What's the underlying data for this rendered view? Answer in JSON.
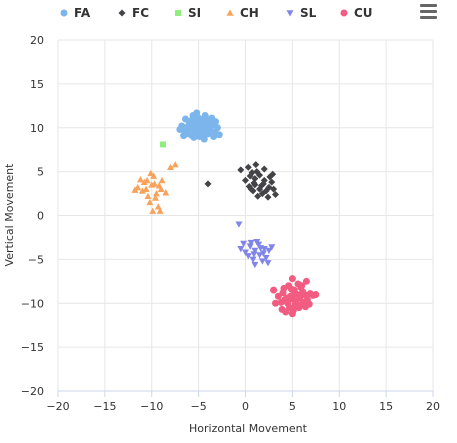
{
  "chart_data": {
    "type": "scatter",
    "xlabel": "Horizontal Movement",
    "ylabel": "Vertical Movement",
    "xlim": [
      -20,
      20
    ],
    "ylim": [
      -20,
      20
    ],
    "x_ticks": [
      -20,
      -15,
      -10,
      -5,
      0,
      5,
      10,
      15,
      20
    ],
    "y_ticks": [
      -20,
      -15,
      -10,
      -5,
      0,
      5,
      10,
      15,
      20
    ],
    "grid": true,
    "legend": "top",
    "series": [
      {
        "name": "FA",
        "color": "#7cb5ec",
        "marker": "circle",
        "points": [
          [
            -5.0,
            10.0
          ],
          [
            -4.8,
            10.6
          ],
          [
            -5.3,
            9.8
          ],
          [
            -4.5,
            10.2
          ],
          [
            -5.6,
            10.4
          ],
          [
            -4.2,
            9.6
          ],
          [
            -5.9,
            9.9
          ],
          [
            -4.0,
            10.9
          ],
          [
            -5.1,
            11.2
          ],
          [
            -4.6,
            9.2
          ],
          [
            -6.2,
            10.1
          ],
          [
            -3.8,
            9.8
          ],
          [
            -5.4,
            9.4
          ],
          [
            -4.3,
            11.4
          ],
          [
            -6.5,
            9.6
          ],
          [
            -3.5,
            10.3
          ],
          [
            -5.8,
            10.8
          ],
          [
            -4.9,
            9.0
          ],
          [
            -6.1,
            9.3
          ],
          [
            -3.3,
            9.5
          ],
          [
            -5.2,
            11.7
          ],
          [
            -4.1,
            10.5
          ],
          [
            -6.8,
            10.2
          ],
          [
            -3.0,
            10.0
          ],
          [
            -5.5,
            8.9
          ],
          [
            -4.4,
            8.7
          ],
          [
            -6.4,
            11.0
          ],
          [
            -3.6,
            11.1
          ],
          [
            -5.0,
            9.5
          ],
          [
            -4.7,
            10.0
          ],
          [
            -5.3,
            10.9
          ],
          [
            -4.0,
            9.3
          ],
          [
            -6.0,
            10.6
          ],
          [
            -3.9,
            10.7
          ],
          [
            -5.7,
            9.1
          ],
          [
            -2.8,
            9.2
          ],
          [
            -7.0,
            9.8
          ],
          [
            -4.5,
            11.0
          ],
          [
            -5.1,
            10.3
          ],
          [
            -3.4,
            9.0
          ],
          [
            -6.6,
            9.1
          ],
          [
            -4.8,
            9.7
          ],
          [
            -5.6,
            11.4
          ],
          [
            -4.2,
            10.1
          ],
          [
            -3.2,
            10.7
          ],
          [
            -6.3,
            9.8
          ],
          [
            -4.9,
            10.8
          ],
          [
            -5.4,
            10.0
          ]
        ]
      },
      {
        "name": "FC",
        "color": "#434348",
        "marker": "diamond",
        "points": [
          [
            0.5,
            4.5
          ],
          [
            1.0,
            3.5
          ],
          [
            1.5,
            3.0
          ],
          [
            2.0,
            4.0
          ],
          [
            0.8,
            2.8
          ],
          [
            1.2,
            5.0
          ],
          [
            2.5,
            3.2
          ],
          [
            0.3,
            5.5
          ],
          [
            -0.5,
            5.2
          ],
          [
            1.8,
            2.5
          ],
          [
            2.8,
            3.8
          ],
          [
            1.0,
            4.2
          ],
          [
            0.6,
            3.0
          ],
          [
            2.2,
            2.8
          ],
          [
            3.0,
            3.0
          ],
          [
            1.5,
            4.6
          ],
          [
            0.0,
            4.0
          ],
          [
            2.0,
            5.3
          ],
          [
            1.3,
            2.2
          ],
          [
            0.9,
            3.7
          ],
          [
            2.6,
            4.4
          ],
          [
            1.7,
            3.4
          ],
          [
            3.2,
            2.4
          ],
          [
            0.4,
            3.3
          ],
          [
            2.4,
            2.1
          ],
          [
            1.1,
            5.8
          ],
          [
            -4.0,
            3.6
          ],
          [
            1.9,
            3.6
          ],
          [
            0.7,
            4.9
          ],
          [
            2.9,
            4.7
          ]
        ]
      },
      {
        "name": "SI",
        "color": "#90ed7d",
        "marker": "square",
        "points": [
          [
            -8.8,
            8.1
          ]
        ]
      },
      {
        "name": "CH",
        "color": "#f7a35c",
        "marker": "triangle",
        "points": [
          [
            -10.0,
            3.5
          ],
          [
            -9.5,
            2.5
          ],
          [
            -10.5,
            4.0
          ],
          [
            -9.0,
            3.0
          ],
          [
            -11.0,
            2.8
          ],
          [
            -10.2,
            1.5
          ],
          [
            -9.8,
            4.5
          ],
          [
            -9.3,
            1.0
          ],
          [
            -8.0,
            5.5
          ],
          [
            -7.5,
            5.8
          ],
          [
            -9.9,
            0.5
          ],
          [
            -10.8,
            3.8
          ],
          [
            -11.5,
            3.2
          ],
          [
            -9.6,
            2.0
          ],
          [
            -8.9,
            4.0
          ],
          [
            -10.4,
            2.2
          ],
          [
            -9.1,
            0.5
          ],
          [
            -11.2,
            4.1
          ],
          [
            -9.7,
            3.6
          ],
          [
            -10.1,
            4.8
          ],
          [
            -8.5,
            2.6
          ],
          [
            -11.8,
            2.9
          ],
          [
            -10.6,
            3.0
          ],
          [
            -9.2,
            3.4
          ]
        ]
      },
      {
        "name": "SL",
        "color": "#8085e9",
        "marker": "triangle-down",
        "points": [
          [
            1.0,
            -4.0
          ],
          [
            0.5,
            -3.5
          ],
          [
            1.5,
            -4.5
          ],
          [
            2.0,
            -3.8
          ],
          [
            0.0,
            -4.2
          ],
          [
            1.2,
            -3.0
          ],
          [
            2.5,
            -4.0
          ],
          [
            0.8,
            -5.0
          ],
          [
            1.8,
            -5.2
          ],
          [
            -0.5,
            -3.8
          ],
          [
            2.2,
            -4.8
          ],
          [
            1.4,
            -3.3
          ],
          [
            0.3,
            -4.6
          ],
          [
            2.8,
            -3.6
          ],
          [
            -0.7,
            -1.0
          ],
          [
            1.0,
            -5.6
          ],
          [
            1.9,
            -4.3
          ],
          [
            0.6,
            -3.1
          ],
          [
            2.4,
            -5.4
          ],
          [
            -0.2,
            -3.2
          ],
          [
            1.6,
            -3.7
          ],
          [
            0.9,
            -4.4
          ]
        ]
      },
      {
        "name": "CU",
        "color": "#f15c80",
        "marker": "circle",
        "points": [
          [
            5.0,
            -9.5
          ],
          [
            5.5,
            -9.0
          ],
          [
            4.5,
            -10.0
          ],
          [
            6.0,
            -10.2
          ],
          [
            5.2,
            -8.5
          ],
          [
            4.8,
            -9.2
          ],
          [
            6.3,
            -9.0
          ],
          [
            5.7,
            -10.5
          ],
          [
            4.2,
            -9.6
          ],
          [
            5.9,
            -8.2
          ],
          [
            4.0,
            -8.8
          ],
          [
            6.6,
            -9.6
          ],
          [
            5.1,
            -10.8
          ],
          [
            3.8,
            -9.9
          ],
          [
            6.9,
            -8.9
          ],
          [
            4.6,
            -8.0
          ],
          [
            5.4,
            -9.8
          ],
          [
            6.1,
            -8.7
          ],
          [
            3.5,
            -9.2
          ],
          [
            5.0,
            -11.2
          ],
          [
            4.3,
            -11.0
          ],
          [
            6.4,
            -10.4
          ],
          [
            5.6,
            -7.8
          ],
          [
            7.2,
            -9.1
          ],
          [
            3.2,
            -10.0
          ],
          [
            4.9,
            -8.4
          ],
          [
            6.5,
            -7.5
          ],
          [
            3.9,
            -10.7
          ],
          [
            5.8,
            -9.4
          ],
          [
            4.4,
            -9.4
          ],
          [
            6.0,
            -8.0
          ],
          [
            5.3,
            -10.1
          ],
          [
            3.0,
            -8.5
          ],
          [
            6.8,
            -10.1
          ],
          [
            4.7,
            -10.5
          ],
          [
            5.2,
            -9.0
          ],
          [
            4.1,
            -8.3
          ],
          [
            6.2,
            -9.9
          ],
          [
            7.5,
            -9.0
          ],
          [
            5.0,
            -7.2
          ]
        ]
      }
    ]
  }
}
